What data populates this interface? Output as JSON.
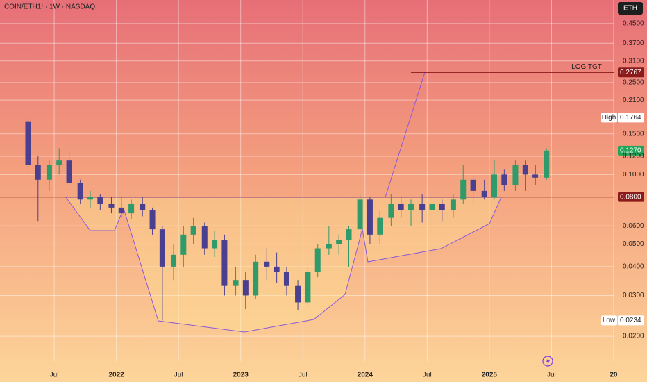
{
  "chart_data": {
    "type": "candlestick",
    "title": "COIN/ETH1! · 1W · NASDAQ",
    "currency": "ETH",
    "log_scale": true,
    "grid": true,
    "up_color": "#2f9a6a",
    "down_color": "#4b3f8f",
    "x": [
      2021.29,
      2021.37,
      2021.46,
      2021.54,
      2021.62,
      2021.71,
      2021.79,
      2021.87,
      2021.96,
      2022.04,
      2022.12,
      2022.21,
      2022.29,
      2022.37,
      2022.46,
      2022.54,
      2022.62,
      2022.71,
      2022.79,
      2022.87,
      2022.96,
      2023.04,
      2023.12,
      2023.21,
      2023.29,
      2023.37,
      2023.46,
      2023.54,
      2023.62,
      2023.71,
      2023.79,
      2023.87,
      2023.96,
      2024.04,
      2024.12,
      2024.21,
      2024.29,
      2024.37,
      2024.46,
      2024.54,
      2024.62,
      2024.71,
      2024.79,
      2024.87,
      2024.96,
      2025.04,
      2025.12,
      2025.21,
      2025.29,
      2025.37,
      2025.46
    ],
    "open": [
      0.17,
      0.11,
      0.095,
      0.11,
      0.115,
      0.092,
      0.078,
      0.08,
      0.075,
      0.072,
      0.068,
      0.075,
      0.07,
      0.058,
      0.04,
      0.045,
      0.055,
      0.06,
      0.048,
      0.052,
      0.033,
      0.035,
      0.03,
      0.042,
      0.04,
      0.038,
      0.033,
      0.028,
      0.038,
      0.048,
      0.05,
      0.052,
      0.058,
      0.078,
      0.055,
      0.065,
      0.075,
      0.07,
      0.075,
      0.07,
      0.075,
      0.07,
      0.078,
      0.095,
      0.085,
      0.08,
      0.1,
      0.09,
      0.11,
      0.1,
      0.097
    ],
    "high": [
      0.176,
      0.12,
      0.115,
      0.13,
      0.125,
      0.095,
      0.085,
      0.082,
      0.08,
      0.08,
      0.078,
      0.08,
      0.072,
      0.06,
      0.05,
      0.06,
      0.065,
      0.062,
      0.057,
      0.055,
      0.04,
      0.038,
      0.045,
      0.048,
      0.046,
      0.04,
      0.035,
      0.04,
      0.05,
      0.06,
      0.055,
      0.06,
      0.082,
      0.08,
      0.07,
      0.082,
      0.08,
      0.078,
      0.082,
      0.08,
      0.078,
      0.082,
      0.11,
      0.1,
      0.095,
      0.115,
      0.105,
      0.115,
      0.115,
      0.11,
      0.13
    ],
    "low": [
      0.1,
      0.063,
      0.085,
      0.1,
      0.09,
      0.075,
      0.072,
      0.07,
      0.068,
      0.065,
      0.064,
      0.066,
      0.055,
      0.0234,
      0.035,
      0.04,
      0.05,
      0.045,
      0.044,
      0.03,
      0.03,
      0.0262,
      0.029,
      0.035,
      0.034,
      0.03,
      0.026,
      0.027,
      0.036,
      0.045,
      0.045,
      0.04,
      0.055,
      0.05,
      0.05,
      0.06,
      0.065,
      0.06,
      0.062,
      0.06,
      0.063,
      0.065,
      0.075,
      0.075,
      0.078,
      0.078,
      0.085,
      0.085,
      0.085,
      0.09,
      0.095
    ],
    "close": [
      0.11,
      0.095,
      0.11,
      0.115,
      0.092,
      0.078,
      0.08,
      0.075,
      0.072,
      0.068,
      0.075,
      0.07,
      0.058,
      0.04,
      0.045,
      0.055,
      0.06,
      0.048,
      0.052,
      0.033,
      0.035,
      0.03,
      0.042,
      0.04,
      0.038,
      0.033,
      0.028,
      0.038,
      0.048,
      0.05,
      0.052,
      0.058,
      0.078,
      0.055,
      0.065,
      0.075,
      0.07,
      0.075,
      0.07,
      0.075,
      0.07,
      0.078,
      0.095,
      0.085,
      0.08,
      0.1,
      0.09,
      0.11,
      0.1,
      0.097,
      0.127
    ],
    "xlim": [
      2021.064,
      2026.006
    ],
    "xticks": [
      {
        "value": 2021.5,
        "label": "Jul"
      },
      2022,
      {
        "value": 2022.5,
        "label": "Jul"
      },
      2023,
      {
        "value": 2023.5,
        "label": "Jul"
      },
      2024,
      {
        "value": 2024.5,
        "label": "Jul"
      },
      2025,
      {
        "value": 2025.5,
        "label": "Jul"
      },
      {
        "value": 2026,
        "label": "20"
      }
    ],
    "ylim": [
      0.0156,
      0.569
    ],
    "yticks": [
      {
        "value": 0.45,
        "label": "0.4500"
      },
      {
        "value": 0.37,
        "label": "0.3700"
      },
      {
        "value": 0.31,
        "label": "0.3100"
      },
      {
        "value": 0.25,
        "label": "0.2500"
      },
      {
        "value": 0.21,
        "label": "0.2100"
      },
      {
        "value": 0.15,
        "label": "0.1500"
      },
      {
        "value": 0.12,
        "label": "0.1200"
      },
      {
        "value": 0.1,
        "label": "0.1000"
      },
      {
        "value": 0.06,
        "label": "0.0600"
      },
      {
        "value": 0.05,
        "label": "0.0500"
      },
      {
        "value": 0.04,
        "label": "0.0400"
      },
      {
        "value": 0.03,
        "label": "0.0300"
      },
      {
        "value": 0.02,
        "label": "0.0200"
      }
    ],
    "levels": [
      {
        "name": "LOG TGT",
        "value": 0.2767,
        "label": "0.2767",
        "color": "#8b1a1a",
        "text_color": "#ffffff"
      },
      {
        "name": "High",
        "value": 0.1764,
        "label": "0.1764",
        "color": "#ffffff",
        "text_color": "#222222"
      },
      {
        "value": 0.127,
        "label": "0.1270",
        "color": "#22a559",
        "text_color": "#ffffff"
      },
      {
        "value": 0.08,
        "label": "0.0800",
        "color": "#8b1a1a",
        "text_color": "#ffffff"
      },
      {
        "name": "Low",
        "value": 0.0234,
        "label": "0.0234",
        "color": "#ffffff",
        "text_color": "#222222"
      }
    ]
  }
}
